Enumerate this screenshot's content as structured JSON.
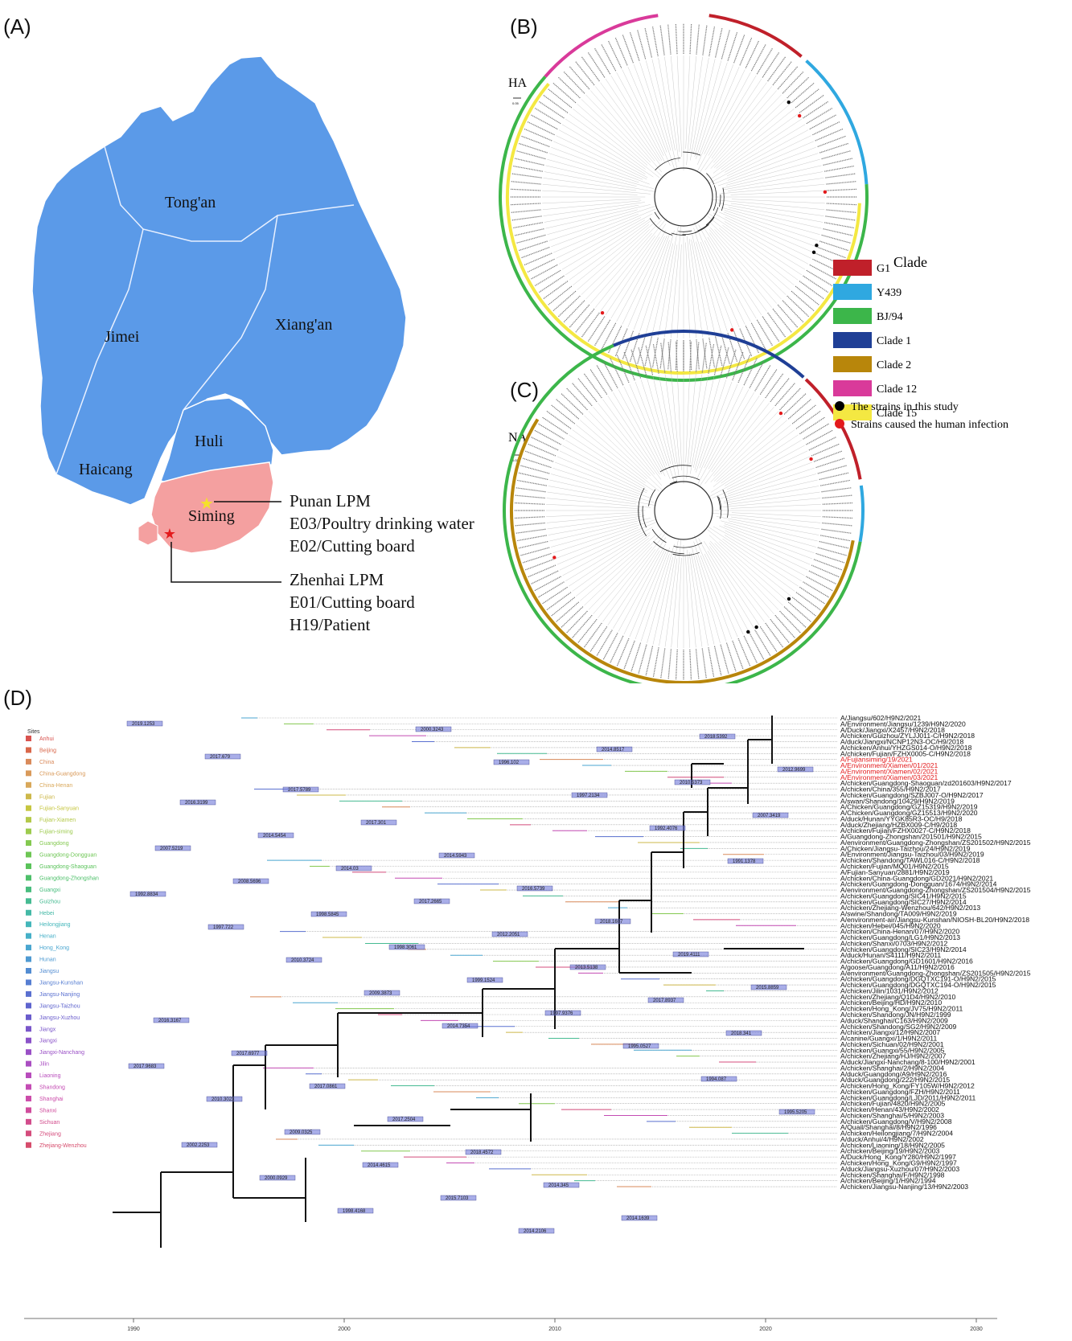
{
  "panels": {
    "a": "(A)",
    "b": "(B)",
    "c": "(C)",
    "d": "(D)"
  },
  "map": {
    "districts": [
      "Tong'an",
      "Jimei",
      "Xiang'an",
      "Huli",
      "Haicang",
      "Siming"
    ],
    "annotation_punan": [
      "Punan LPM",
      "E03/Poultry drinking water",
      "E02/Cutting board"
    ],
    "annotation_zhenhai": [
      "Zhenhai LPM",
      "E01/Cutting board",
      "H19/Patient"
    ]
  },
  "tree_b": {
    "gene": "HA",
    "scale": "0.05"
  },
  "tree_c": {
    "gene": "NA",
    "scale": "0.02"
  },
  "clade_legend": {
    "title": "Clade",
    "items": [
      {
        "label": "G1",
        "color": "#c0202a"
      },
      {
        "label": "Y439",
        "color": "#2fa8e0"
      },
      {
        "label": "BJ/94",
        "color": "#3cb64a"
      },
      {
        "label": "Clade 1",
        "color": "#1f3f96"
      },
      {
        "label": "Clade 2",
        "color": "#b8860b"
      },
      {
        "label": "Clade 12",
        "color": "#d93a9a"
      },
      {
        "label": "Clade 15",
        "color": "#f4e842"
      }
    ],
    "markers": [
      {
        "label": "The strains in this study",
        "color": "#000000"
      },
      {
        "label": "Strains caused the human infection",
        "color": "#e31a1c"
      }
    ]
  },
  "sites": {
    "title": "Sites",
    "items": [
      {
        "label": "Anhui",
        "color": "#d9534f"
      },
      {
        "label": "Beijing",
        "color": "#d9674a"
      },
      {
        "label": "China",
        "color": "#d98a5a"
      },
      {
        "label": "China-Guangdong",
        "color": "#d99a5a"
      },
      {
        "label": "China-Henan",
        "color": "#d9a85a"
      },
      {
        "label": "Fujian",
        "color": "#cdb84a"
      },
      {
        "label": "Fujian-Sanyuan",
        "color": "#c6c640"
      },
      {
        "label": "Fujian-Xiamen",
        "color": "#b4c94a"
      },
      {
        "label": "Fujian-siming",
        "color": "#9dcb4e"
      },
      {
        "label": "Guangdong",
        "color": "#84c950"
      },
      {
        "label": "Guangdong-Dongguan",
        "color": "#6ec654"
      },
      {
        "label": "Guangdong-Shaoguan",
        "color": "#5ac35a"
      },
      {
        "label": "Guangdong-Zhongshan",
        "color": "#4ec06a"
      },
      {
        "label": "Guangxi",
        "color": "#48bd7e"
      },
      {
        "label": "Guizhou",
        "color": "#46bb92"
      },
      {
        "label": "Hebei",
        "color": "#44b9a6"
      },
      {
        "label": "Heilongjiang",
        "color": "#44b6ba"
      },
      {
        "label": "Henan",
        "color": "#46b0c8"
      },
      {
        "label": "Hong_Kong",
        "color": "#4aa6d0"
      },
      {
        "label": "Hunan",
        "color": "#4e9ad2"
      },
      {
        "label": "Jiangsu",
        "color": "#528cd2"
      },
      {
        "label": "Jiangsu-Kunshan",
        "color": "#567ed2"
      },
      {
        "label": "Jiangsu-Nanjing",
        "color": "#5a70d0"
      },
      {
        "label": "Jiangsu-Taizhou",
        "color": "#5e64ce"
      },
      {
        "label": "Jiangsu-Xuzhou",
        "color": "#6a5ccc"
      },
      {
        "label": "Jiangx",
        "color": "#7a56ca"
      },
      {
        "label": "Jiangxi",
        "color": "#8a52c8"
      },
      {
        "label": "Jiangxi-Nanchang",
        "color": "#9a50c6"
      },
      {
        "label": "Jilin",
        "color": "#aa4ec2"
      },
      {
        "label": "Liaoning",
        "color": "#b84cbc"
      },
      {
        "label": "Shandong",
        "color": "#c44cb4"
      },
      {
        "label": "Shanghai",
        "color": "#cc4caa"
      },
      {
        "label": "Shanxi",
        "color": "#d04c9c"
      },
      {
        "label": "Sichuan",
        "color": "#d24c8c"
      },
      {
        "label": "Zhejiang",
        "color": "#d44c7c"
      },
      {
        "label": "Zhejiang-Wenzhou",
        "color": "#d64c6c"
      }
    ]
  },
  "tree_d_axis": {
    "ticks": [
      "1990",
      "2000",
      "2010",
      "2020",
      "2030"
    ]
  },
  "tree_d_tips": [
    {
      "label": "A/Jiangsu/602/H9N2/2021",
      "red": false
    },
    {
      "label": "A/Environment/Jiangsu/1239/H9N2/2020",
      "red": false
    },
    {
      "label": "A/Duck/Jiangxi/X2457/H9N2/2018",
      "red": false
    },
    {
      "label": "A/chicken/Guizhou/ZYLJJ011-C/H9N2/2018",
      "red": false
    },
    {
      "label": "A/duck/Jiangxi/NCNP12N3-OC/H9/2018",
      "red": false
    },
    {
      "label": "A/chicken/Anhui/YHZGS014-O/H9N2/2018",
      "red": false
    },
    {
      "label": "A/chicken/Fujian/FZHX0005-C/H9N2/2018",
      "red": false
    },
    {
      "label": "A/Fujiansiming/19/2021",
      "red": true
    },
    {
      "label": "A/Environment/Xiamen/01/2021",
      "red": true
    },
    {
      "label": "A/Environment/Xiamen/02/2021",
      "red": true
    },
    {
      "label": "A/Environment/Xiamen/03/2021",
      "red": true
    },
    {
      "label": "A/chicken/Guangdong-Shaoguan/zd201603/H9N2/2017",
      "red": false
    },
    {
      "label": "A/chicken/China/355/H9N2/2017",
      "red": false
    },
    {
      "label": "A/chicken/Guangdong/SZBJ007-O/H9N2/2017",
      "red": false
    },
    {
      "label": "A/swan/Shandong/10429/H9N2/2019",
      "red": false
    },
    {
      "label": "A/Chicken/Guangdong/GZ15319/H9N2/2019",
      "red": false
    },
    {
      "label": "A/Chicken/Guangdong/GZ15513/H9N2/2020",
      "red": false
    },
    {
      "label": "A/duck/Hunan/YYGK85R3-OC/H9/2018",
      "red": false
    },
    {
      "label": "A/duck/Zhejiang/HZBX009-C/H9/2018",
      "red": false
    },
    {
      "label": "A/chicken/Fujian/FZHX0027-C/H9N2/2018",
      "red": false
    },
    {
      "label": "A/Guangdong-Zhongshan/201501/H9N2/2015",
      "red": false
    },
    {
      "label": "A/environment/Guangdong-Zhongshan/ZS201502/H9N2/2015",
      "red": false
    },
    {
      "label": "A/Chicken/Jiangsu-Taizhou/24/H9N2/2019",
      "red": false
    },
    {
      "label": "A/Environment/Jiangsu-Taizhou/03/H9N2/2019",
      "red": false
    },
    {
      "label": "A/chicken/Shandong/TAWL016-C/H9N2/2018",
      "red": false
    },
    {
      "label": "A/chicken/Fujian/MQ01/H9N2/2015",
      "red": false
    },
    {
      "label": "A/Fujian-Sanyuan/2881/H9N2/2019",
      "red": false
    },
    {
      "label": "A/chicken/China-Guangdong/GD2021/H9N2/2021",
      "red": false
    },
    {
      "label": "A/chicken/Guangdong-Dongguan/1674/H9N2/2014",
      "red": false
    },
    {
      "label": "A/environment/Guangdong-Zhongshan/ZS201504/H9N2/2015",
      "red": false
    },
    {
      "label": "A/chicken/Guangdong/SIC41/H9N2/2015",
      "red": false
    },
    {
      "label": "A/chicken/Guangdong/SIC27/H9N2/2014",
      "red": false
    },
    {
      "label": "A/chicken/Zhejiang-Wenzhou/642/H9N2/2013",
      "red": false
    },
    {
      "label": "A/swine/Shandong/TA009/H9N2/2019",
      "red": false
    },
    {
      "label": "A/environment-air/Jiangsu-Kunshan/NIOSH-BL20/H9N2/2018",
      "red": false
    },
    {
      "label": "A/chicken/Hebei/045/H9N2/2020",
      "red": false
    },
    {
      "label": "A/chicken/China-Henan/07/H9N2/2020",
      "red": false
    },
    {
      "label": "A/chicken/Guangdong/LG1/H9N2/2013",
      "red": false
    },
    {
      "label": "A/chicken/Shanxi/0703/H9N2/2012",
      "red": false
    },
    {
      "label": "A/chicken/Guangdong/SIC23/H9N2/2014",
      "red": false
    },
    {
      "label": "A/duck/Hunan/S4111/H9N2/2011",
      "red": false
    },
    {
      "label": "A/chicken/Guangdong/GD1601/H9N2/2016",
      "red": false
    },
    {
      "label": "A/goose/Guangdong/A11/H9N2/2016",
      "red": false
    },
    {
      "label": "A/environment/Guangdong-Zhongshan/ZS201505/H9N2/2015",
      "red": false
    },
    {
      "label": "A/chicken/Guangdong/DGQTXC191-O/H9N2/2015",
      "red": false
    },
    {
      "label": "A/chicken/Guangdong/DGQTXC194-O/H9N2/2015",
      "red": false
    },
    {
      "label": "A/chicken/Jilin/1031/H9N2/2012",
      "red": false
    },
    {
      "label": "A/chicken/Zhejiang/Q1D4/H9N2/2010",
      "red": false
    },
    {
      "label": "A/chicken/Beijing/HD/H9N2/2010",
      "red": false
    },
    {
      "label": "A/chicken/Hong_Kong/JV75/H9N2/2011",
      "red": false
    },
    {
      "label": "A/chicken/Shandong/JN/H9N2/1999",
      "red": false
    },
    {
      "label": "A/duck/Shanghai/C163/H9N2/2009",
      "red": false
    },
    {
      "label": "A/chicken/Shandong/SG2/H9N2/2009",
      "red": false
    },
    {
      "label": "A/chicken/Jiangxi/12/H9N2/2007",
      "red": false
    },
    {
      "label": "A/canine/Guangxi/1/H9N2/2011",
      "red": false
    },
    {
      "label": "A/chicken/Sichuan/02/H9N2/2001",
      "red": false
    },
    {
      "label": "A/chicken/Guangxi/55/H9N2/2005",
      "red": false
    },
    {
      "label": "A/chicken/Zhejiang/HJ/H9N2/2007",
      "red": false
    },
    {
      "label": "A/duck/Jiangxi-Nanchang/8-100/H9N2/2001",
      "red": false
    },
    {
      "label": "A/chicken/Shanghai/2/H9N2/2004",
      "red": false
    },
    {
      "label": "A/duck/Guangdong/A9/H9N2/2016",
      "red": false
    },
    {
      "label": "A/duck/Guangdong/222/H9N2/2015",
      "red": false
    },
    {
      "label": "A/chicken/Hong_Kong/FY105W/H9N2/2012",
      "red": false
    },
    {
      "label": "A/chicken/Guangdong/FZH/H9N2/2011",
      "red": false
    },
    {
      "label": "A/chicken/Guangdong/LJD/2011/H9N2/2011",
      "red": false
    },
    {
      "label": "A/chicken/Fujian/4820/H9N2/2005",
      "red": false
    },
    {
      "label": "A/chicken/Henan/43/H9N2/2002",
      "red": false
    },
    {
      "label": "A/chicken/Shanghai/5/H9N2/2003",
      "red": false
    },
    {
      "label": "A/chicken/Guangdong/V/H9N2/2008",
      "red": false
    },
    {
      "label": "A/Quail/Shanghai/8/H9N2/1996",
      "red": false
    },
    {
      "label": "A/chicken/Heilongjiang/7/H9N2/2004",
      "red": false
    },
    {
      "label": "A/duck/Anhui/4/H9N2/2002",
      "red": false
    },
    {
      "label": "A/chicken/Liaoning/18/H9N2/2005",
      "red": false
    },
    {
      "label": "A/chicken/Beijing/19/H9N2/2003",
      "red": false
    },
    {
      "label": "A/Duck/Hong_Kong/Y280/H9N2/1997",
      "red": false
    },
    {
      "label": "A/chicken/Hong_Kong/G9/H9N2/1997",
      "red": false
    },
    {
      "label": "A/duck/Jiangsu-Xuzhou/07/H9N2/2003",
      "red": false
    },
    {
      "label": "A/chicken/Shanghai/F/H9N2/1998",
      "red": false
    },
    {
      "label": "A/chicken/Beijing/1/H9N2/1994",
      "red": false
    },
    {
      "label": "A/chicken/Jiangsu-Nanjing/13/H9N2/2003",
      "red": false
    }
  ],
  "tree_d_nodes": [
    "2019.1253",
    "2017.679",
    "2017.5789",
    "2017.301",
    "2014.5943",
    "2016.5739",
    "2018.1607",
    "2019.4111",
    "2015.8859",
    "2016.3167",
    "2017.6977",
    "2017.0861",
    "2017.2504",
    "2018.4572",
    "2014.345",
    "2014.1639",
    "2018.5392",
    "2012.9699",
    "2016.3199",
    "2014.5454",
    "2014.03",
    "2017.2665",
    "2012.2051",
    "2013.5138",
    "2017.8937",
    "2018.341",
    "2017.9683",
    "2010.3023",
    "2009.0325",
    "2014.4615",
    "2015.7103",
    "2014.2106",
    "2014.8517",
    "2010.5373",
    "2007.3419",
    "2007.5219",
    "2008.5696",
    "1998.5845",
    "1998.3061",
    "1999.1524",
    "1997.9376",
    "1995.0527",
    "1994.087",
    "1995.5205",
    "2002.2253",
    "2000.0929",
    "1998.4168",
    "2000.3243",
    "1996.102",
    "1997.2134",
    "1992.4076",
    "1991.1378",
    "1992.8834",
    "1997.722",
    "2010.3724",
    "2009.3873",
    "2014.7354"
  ]
}
